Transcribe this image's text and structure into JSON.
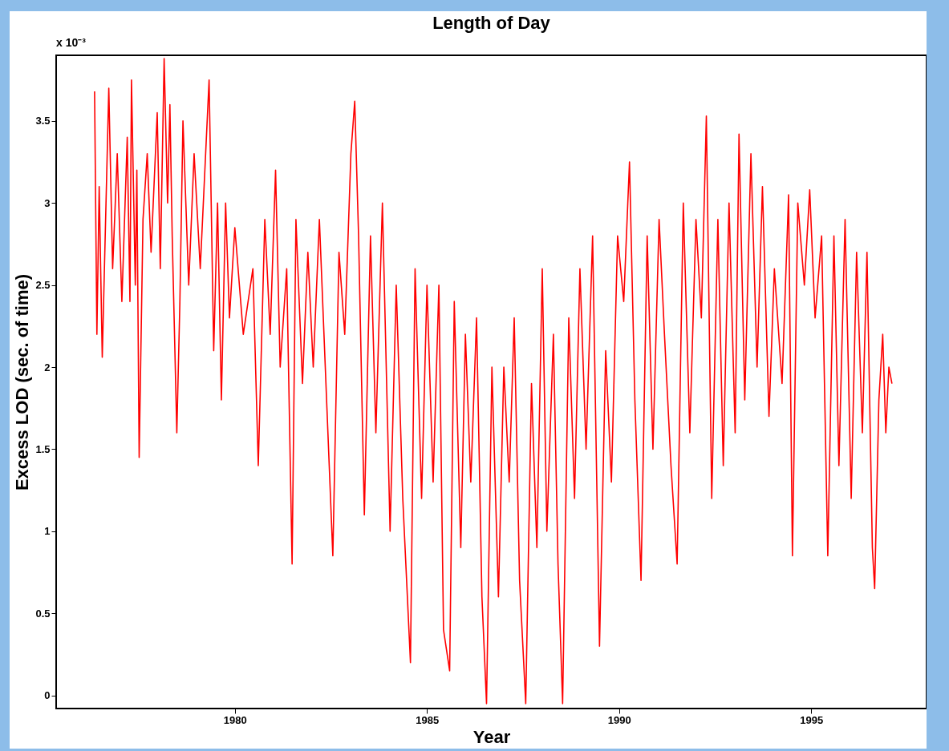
{
  "chart_data": {
    "type": "line",
    "title": "Length of Day",
    "xlabel": "Year",
    "ylabel": "Excess LOD (sec. of time)",
    "annotations": [
      "x 10⁻³"
    ],
    "xlim": [
      1975.35,
      1998
    ],
    "xticks": [
      1980,
      1985,
      1990,
      1995
    ],
    "ylim": [
      -0.08,
      3.9
    ],
    "yticks": [
      0,
      0.5,
      1,
      1.5,
      2,
      2.5,
      3,
      3.5
    ],
    "grid": false,
    "marker": "none",
    "line_style": "solid",
    "x": [
      1976.35,
      1976.41,
      1976.47,
      1976.55,
      1976.72,
      1976.82,
      1976.94,
      1977.06,
      1977.2,
      1977.27,
      1977.31,
      1977.41,
      1977.45,
      1977.51,
      1977.61,
      1977.72,
      1977.82,
      1977.98,
      1978.06,
      1978.16,
      1978.25,
      1978.31,
      1978.37,
      1978.49,
      1978.57,
      1978.65,
      1978.8,
      1978.94,
      1979.1,
      1979.33,
      1979.45,
      1979.55,
      1979.65,
      1979.76,
      1979.86,
      1980.0,
      1980.22,
      1980.47,
      1980.61,
      1980.78,
      1980.92,
      1981.06,
      1981.18,
      1981.35,
      1981.49,
      1981.59,
      1981.76,
      1981.9,
      1982.04,
      1982.2,
      1982.55,
      1982.71,
      1982.86,
      1983.02,
      1983.12,
      1983.22,
      1983.37,
      1983.53,
      1983.67,
      1983.84,
      1984.04,
      1984.2,
      1984.37,
      1984.57,
      1984.69,
      1984.86,
      1985.0,
      1985.16,
      1985.31,
      1985.43,
      1985.59,
      1985.71,
      1985.88,
      1986.0,
      1986.14,
      1986.29,
      1986.43,
      1986.55,
      1986.69,
      1986.86,
      1987.0,
      1987.14,
      1987.27,
      1987.41,
      1987.57,
      1987.72,
      1987.86,
      1988.0,
      1988.12,
      1988.29,
      1988.41,
      1988.53,
      1988.69,
      1988.84,
      1988.98,
      1989.14,
      1989.31,
      1989.49,
      1989.65,
      1989.8,
      1989.96,
      1990.12,
      1990.27,
      1990.41,
      1990.57,
      1990.73,
      1990.88,
      1991.04,
      1991.18,
      1991.35,
      1991.51,
      1991.67,
      1991.84,
      1992.0,
      1992.14,
      1992.27,
      1992.41,
      1992.57,
      1992.71,
      1992.86,
      1993.02,
      1993.12,
      1993.27,
      1993.43,
      1993.59,
      1993.73,
      1993.9,
      1994.04,
      1994.24,
      1994.41,
      1994.51,
      1994.65,
      1994.82,
      1994.96,
      1995.1,
      1995.27,
      1995.43,
      1995.59,
      1995.72,
      1995.88,
      1996.04,
      1996.18,
      1996.33,
      1996.45,
      1996.59,
      1996.65,
      1996.76,
      1996.86,
      1996.94,
      1997.02,
      1997.1
    ],
    "series": [
      {
        "color": "#ff0000",
        "values": [
          3.68,
          2.2,
          3.1,
          2.06,
          3.7,
          2.6,
          3.3,
          2.4,
          3.4,
          2.4,
          3.75,
          2.5,
          3.2,
          1.45,
          2.9,
          3.3,
          2.7,
          3.55,
          2.6,
          3.88,
          3.0,
          3.6,
          2.8,
          1.6,
          2.4,
          3.5,
          2.5,
          3.3,
          2.6,
          3.75,
          2.1,
          3.0,
          1.8,
          3.0,
          2.3,
          2.85,
          2.2,
          2.6,
          1.4,
          2.9,
          2.2,
          3.2,
          2.0,
          2.6,
          0.8,
          2.9,
          1.9,
          2.7,
          2.0,
          2.9,
          0.85,
          2.7,
          2.2,
          3.3,
          3.62,
          2.8,
          1.1,
          2.8,
          1.6,
          3.0,
          1.0,
          2.5,
          1.2,
          0.2,
          2.6,
          1.2,
          2.5,
          1.3,
          2.5,
          0.4,
          0.15,
          2.4,
          0.9,
          2.2,
          1.3,
          2.3,
          0.6,
          -0.05,
          2.0,
          0.6,
          2.0,
          1.3,
          2.3,
          0.7,
          -0.05,
          1.9,
          0.9,
          2.6,
          1.0,
          2.2,
          0.8,
          -0.05,
          2.3,
          1.2,
          2.6,
          1.5,
          2.8,
          0.3,
          2.1,
          1.3,
          2.8,
          2.4,
          3.25,
          1.8,
          0.7,
          2.8,
          1.5,
          2.9,
          2.2,
          1.4,
          0.8,
          3.0,
          1.6,
          2.9,
          2.3,
          3.53,
          1.2,
          2.9,
          1.4,
          3.0,
          1.6,
          3.42,
          1.8,
          3.3,
          2.0,
          3.1,
          1.7,
          2.6,
          1.9,
          3.05,
          0.85,
          3.0,
          2.5,
          3.08,
          2.3,
          2.8,
          0.85,
          2.8,
          1.4,
          2.9,
          1.2,
          2.7,
          1.6,
          2.7,
          0.9,
          0.65,
          1.8,
          2.2,
          1.6,
          2.0,
          1.9
        ]
      }
    ]
  }
}
